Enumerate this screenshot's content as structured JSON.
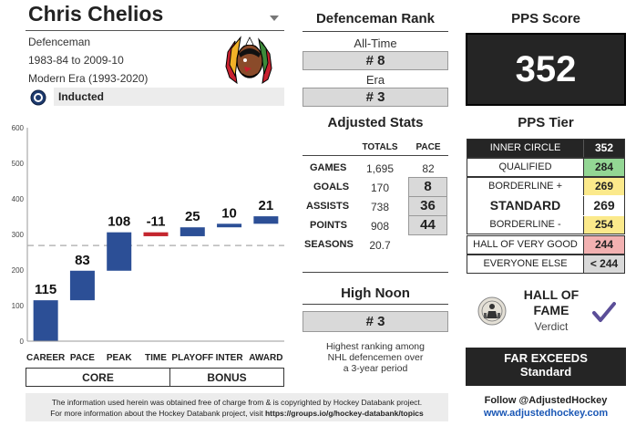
{
  "player": {
    "name": "Chris Chelios",
    "position": "Defenceman",
    "seasons": "1983-84 to 2009-10",
    "era": "Modern Era (1993-2020)",
    "status": "Inducted"
  },
  "colors": {
    "bar_blue": "#2c4f96",
    "bar_red": "#c4262e",
    "pps_dark": "#252525",
    "tier_green": "#93d694",
    "tier_yellow": "#fbe98b",
    "tier_red": "#f2b1b1",
    "box_gray": "#d9d9d9",
    "link_blue": "#1a57b5"
  },
  "chart_data": {
    "type": "bar",
    "subtype": "waterfall",
    "categories": [
      "CAREER",
      "PACE",
      "PEAK",
      "TIME",
      "PLAYOFF",
      "INTER",
      "AWARD"
    ],
    "values": [
      115,
      83,
      108,
      -11,
      25,
      10,
      21
    ],
    "value_labels": [
      "115",
      "83",
      "108",
      "-11",
      "25",
      "10",
      "21"
    ],
    "total": 352,
    "standard_line": 269,
    "ylim": [
      0,
      600
    ],
    "yticks": [
      0,
      100,
      200,
      300,
      400,
      500,
      600
    ],
    "grid": false,
    "groups": [
      {
        "label": "CORE",
        "categories": [
          "CAREER",
          "PACE",
          "PEAK"
        ]
      },
      {
        "label": "BONUS",
        "categories": [
          "TIME",
          "PLAYOFF",
          "INTER",
          "AWARD"
        ]
      }
    ]
  },
  "rank": {
    "title": "Defenceman Rank",
    "alltime_label": "All-Time",
    "alltime_value": "# 8",
    "era_label": "Era",
    "era_value": "# 3"
  },
  "adjusted_stats": {
    "title": "Adjusted Stats",
    "col_totals": "TOTALS",
    "col_pace": "PACE",
    "rows": [
      {
        "label": "GAMES",
        "total": "1,695",
        "pace": "82"
      },
      {
        "label": "GOALS",
        "total": "170",
        "pace": "8"
      },
      {
        "label": "ASSISTS",
        "total": "738",
        "pace": "36"
      },
      {
        "label": "POINTS",
        "total": "908",
        "pace": "44"
      },
      {
        "label": "SEASONS",
        "total": "20.7",
        "pace": ""
      }
    ]
  },
  "high_noon": {
    "title": "High Noon",
    "value": "# 3",
    "description_1": "Highest ranking among",
    "description_2": "NHL defencemen over",
    "description_3": "a 3-year period"
  },
  "pps": {
    "title": "PPS Score",
    "score": "352",
    "tier_title": "PPS Tier",
    "tiers": [
      {
        "name": "INNER CIRCLE",
        "value": "352"
      },
      {
        "name": "QUALIFIED",
        "value": "284"
      },
      {
        "name": "BORDERLINE +",
        "value": "269"
      },
      {
        "name": "STANDARD",
        "value": "269"
      },
      {
        "name": "BORDERLINE -",
        "value": "254"
      },
      {
        "name": "HALL OF VERY GOOD",
        "value": "244"
      },
      {
        "name": "EVERYONE ELSE",
        "value": "< 244"
      }
    ]
  },
  "hof": {
    "title_1": "HALL OF",
    "title_2": "FAME",
    "verdict_label": "Verdict",
    "verdict_1": "FAR EXCEEDS",
    "verdict_2": "Standard"
  },
  "footer": {
    "line_1": "The information used herein was obtained free of charge from & is copyrighted by Hockey Databank project.",
    "line_2_prefix": "For more information about the Hockey Databank project, visit ",
    "line_2_link": "https://groups.io/g/hockey-databank/topics",
    "follow": "Follow @AdjustedHockey",
    "site": "www.adjustedhockey.com"
  }
}
